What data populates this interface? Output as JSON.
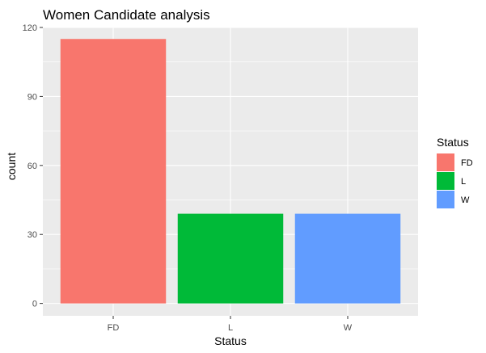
{
  "chart_data": {
    "type": "bar",
    "title": "Women Candidate analysis",
    "xlabel": "Status",
    "ylabel": "count",
    "categories": [
      "FD",
      "L",
      "W"
    ],
    "values": [
      115,
      39,
      39
    ],
    "colors": [
      "#F8766D",
      "#00BA38",
      "#619CFF"
    ],
    "ylim": [
      0,
      120
    ],
    "yticks": [
      0,
      30,
      60,
      90,
      120
    ],
    "ytick_labels": [
      "0",
      "30",
      "60",
      "90",
      "120"
    ],
    "grid": true,
    "panel_background": "#EBEBEB",
    "grid_color": "#FFFFFF",
    "legend": {
      "title": "Status",
      "position": "right",
      "items": [
        {
          "label": "FD",
          "color": "#F8766D"
        },
        {
          "label": "L",
          "color": "#00BA38"
        },
        {
          "label": "W",
          "color": "#619CFF"
        }
      ]
    }
  }
}
